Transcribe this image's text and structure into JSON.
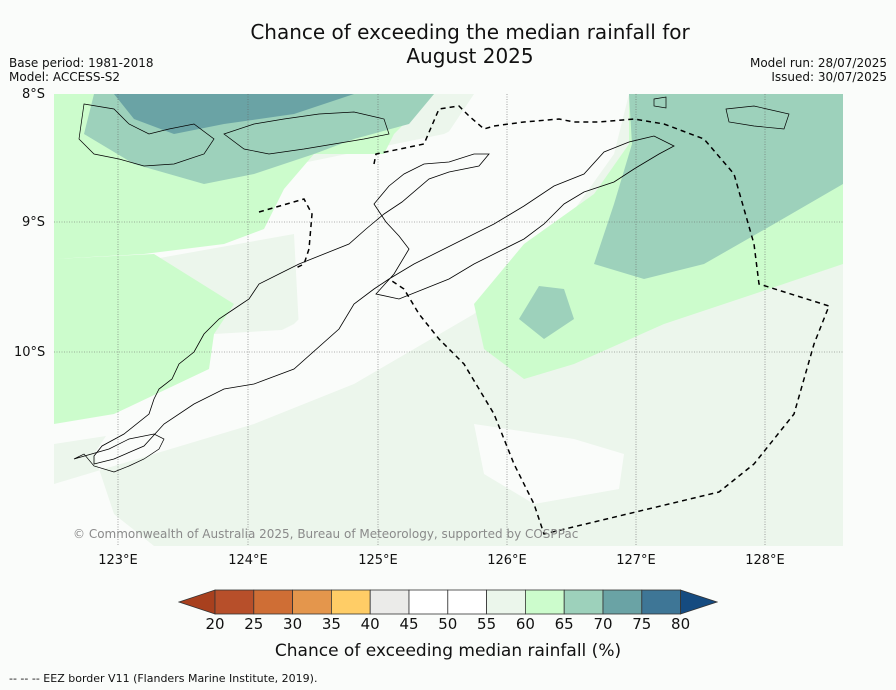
{
  "header": {
    "title_line1": "Chance of exceeding the median rainfall for",
    "title_line2": "August 2025",
    "base_period": "Base period: 1981-2018",
    "model": "Model: ACCESS-S2",
    "model_run": "Model run: 28/07/2025",
    "issued": "Issued: 30/07/2025"
  },
  "map": {
    "lat_labels": [
      "8°S",
      "9°S",
      "10°S"
    ],
    "lon_labels": [
      "123°E",
      "124°E",
      "125°E",
      "126°E",
      "127°E",
      "128°E"
    ],
    "copyright": "© Commonwealth of Australia 2025, Bureau of Meteorology, supported by COSPPac",
    "colors": {
      "band_55_60": "#ecf6ec",
      "band_60_65": "#ccfccc",
      "band_65_70": "#9dd1bb",
      "band_70_75": "#6aa3a5",
      "land_outline": "#000000",
      "eez_line": "#000000"
    }
  },
  "colorbar": {
    "ticks": [
      "20",
      "25",
      "30",
      "35",
      "40",
      "45",
      "50",
      "55",
      "60",
      "65",
      "70",
      "75",
      "80"
    ],
    "colors": [
      "#a8401e",
      "#b74f2a",
      "#cf6e35",
      "#e4964c",
      "#ffcd66",
      "#ebebe9",
      "#ffffff",
      "#ffffff",
      "#ebf6eb",
      "#ccfccc",
      "#9dd1bb",
      "#6aa3a5",
      "#3e7696",
      "#154b80"
    ],
    "label": "Chance of exceeding median rainfall (%)"
  },
  "footnote": "--  --  -- EEZ border V11 (Flanders Marine Institute, 2019)."
}
